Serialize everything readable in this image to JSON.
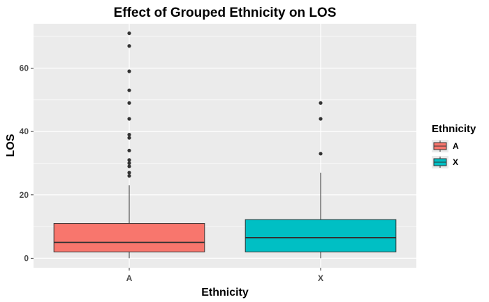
{
  "chart_data": {
    "type": "boxplot",
    "title": "Effect of Grouped Ethnicity on LOS",
    "xlabel": "Ethnicity",
    "ylabel": "LOS",
    "ylim": [
      -3,
      74
    ],
    "yticks": [
      0,
      20,
      40,
      60
    ],
    "grid": true,
    "legend": {
      "title": "Ethnicity",
      "position": "right",
      "entries": [
        "A",
        "X"
      ]
    },
    "groups": [
      {
        "category": "A",
        "color": "#F8766D",
        "whisker_low": 0,
        "q1": 2,
        "median": 5,
        "q3": 11,
        "whisker_high": 23,
        "outliers": [
          26,
          27,
          29,
          30,
          31,
          34,
          38,
          39,
          44,
          49,
          53,
          59,
          67,
          71
        ]
      },
      {
        "category": "X",
        "color": "#00BFC4",
        "whisker_low": 0,
        "q1": 2,
        "median": 6.5,
        "q3": 12.2,
        "whisker_high": 27,
        "outliers": [
          33,
          44,
          49
        ]
      }
    ]
  }
}
